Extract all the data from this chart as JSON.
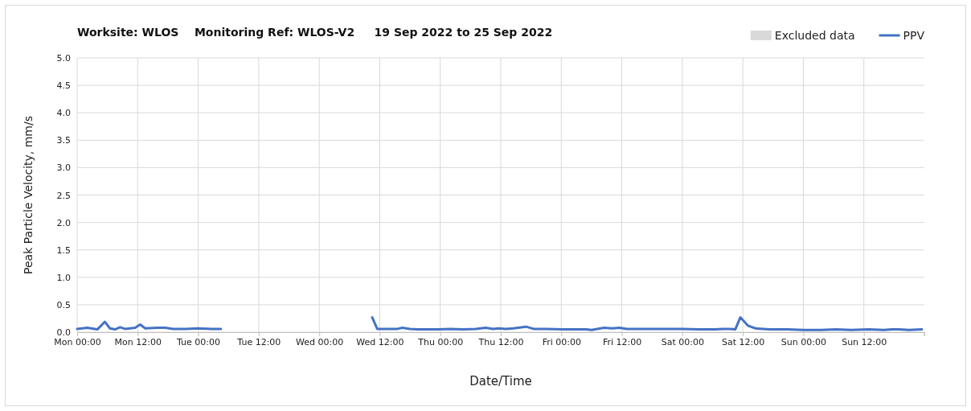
{
  "chart_data": {
    "type": "line",
    "title": "Worksite: WLOS    Monitoring Ref: WLOS-V2     19 Sep 2022 to 25 Sep 2022",
    "xlabel": "Date/Time",
    "ylabel": "Peak Particle Velocity, mm/s",
    "xlim": [
      "2022-09-19T00:00",
      "2022-09-26T00:00"
    ],
    "xticks": [
      {
        "value": "2022-09-19T00:00",
        "label": "Mon 00:00"
      },
      {
        "value": "2022-09-19T12:00",
        "label": "Mon 12:00"
      },
      {
        "value": "2022-09-20T00:00",
        "label": "Tue 00:00"
      },
      {
        "value": "2022-09-20T12:00",
        "label": "Tue 12:00"
      },
      {
        "value": "2022-09-21T00:00",
        "label": "Wed 00:00"
      },
      {
        "value": "2022-09-21T12:00",
        "label": "Wed 12:00"
      },
      {
        "value": "2022-09-22T00:00",
        "label": "Thu 00:00"
      },
      {
        "value": "2022-09-22T12:00",
        "label": "Thu 12:00"
      },
      {
        "value": "2022-09-23T00:00",
        "label": "Fri 00:00"
      },
      {
        "value": "2022-09-23T12:00",
        "label": "Fri 12:00"
      },
      {
        "value": "2022-09-24T00:00",
        "label": "Sat 00:00"
      },
      {
        "value": "2022-09-24T12:00",
        "label": "Sat 12:00"
      },
      {
        "value": "2022-09-25T00:00",
        "label": "Sun 00:00"
      },
      {
        "value": "2022-09-25T12:00",
        "label": "Sun 12:00"
      }
    ],
    "ylim": [
      0,
      5
    ],
    "yticks": [
      {
        "value": 0,
        "label": "0.0"
      },
      {
        "value": 0.5,
        "label": "0.5"
      },
      {
        "value": 1,
        "label": "1.0"
      },
      {
        "value": 1.5,
        "label": "1.5"
      },
      {
        "value": 2,
        "label": "2.0"
      },
      {
        "value": 2.5,
        "label": "2.5"
      },
      {
        "value": 3,
        "label": "3.0"
      },
      {
        "value": 3.5,
        "label": "3.5"
      },
      {
        "value": 4,
        "label": "4.0"
      },
      {
        "value": 4.5,
        "label": "4.5"
      },
      {
        "value": 5,
        "label": "5.0"
      }
    ],
    "grid": true,
    "legend": "top right",
    "marker": "none",
    "line_style": "solid",
    "series": [
      {
        "name": "Excluded data",
        "type": "area",
        "color": "#d9d9d9"
      },
      {
        "name": "PPV",
        "color": "#4472c4",
        "x": [
          "2022-09-19T00:00",
          "2022-09-19T02:00",
          "2022-09-19T04:00",
          "2022-09-19T05:30",
          "2022-09-19T06:30",
          "2022-09-19T07:30",
          "2022-09-19T08:30",
          "2022-09-19T09:30",
          "2022-09-19T11:30",
          "2022-09-19T12:30",
          "2022-09-19T13:30",
          "2022-09-19T16:00",
          "2022-09-19T17:30",
          "2022-09-19T19:00",
          "2022-09-19T21:30",
          "2022-09-20T00:00",
          "2022-09-20T02:30",
          "2022-09-20T04:30",
          "2022-09-20T19:00",
          "2022-09-21T10:30",
          "2022-09-21T11:30",
          "2022-09-21T15:30",
          "2022-09-21T16:30",
          "2022-09-21T18:00",
          "2022-09-21T19:30",
          "2022-09-21T23:30",
          "2022-09-22T02:00",
          "2022-09-22T04:30",
          "2022-09-22T07:00",
          "2022-09-22T09:00",
          "2022-09-22T10:30",
          "2022-09-22T11:30",
          "2022-09-22T13:00",
          "2022-09-22T14:30",
          "2022-09-22T17:00",
          "2022-09-22T18:30",
          "2022-09-22T21:00",
          "2022-09-23T00:30",
          "2022-09-23T05:00",
          "2022-09-23T06:00",
          "2022-09-23T08:30",
          "2022-09-23T10:00",
          "2022-09-23T11:30",
          "2022-09-23T13:00",
          "2022-09-23T16:00",
          "2022-09-23T21:00",
          "2022-09-24T00:00",
          "2022-09-24T03:30",
          "2022-09-24T06:30",
          "2022-09-24T08:00",
          "2022-09-24T09:30",
          "2022-09-24T10:30",
          "2022-09-24T11:30",
          "2022-09-24T13:00",
          "2022-09-24T14:30",
          "2022-09-24T16:00",
          "2022-09-24T17:30",
          "2022-09-24T21:00",
          "2022-09-25T00:00",
          "2022-09-25T03:30",
          "2022-09-25T06:30",
          "2022-09-25T09:30",
          "2022-09-25T13:00",
          "2022-09-25T16:00",
          "2022-09-25T17:30",
          "2022-09-25T19:00",
          "2022-09-25T21:00",
          "2022-09-25T23:30"
        ],
        "values": [
          0.06,
          0.08,
          0.05,
          0.19,
          0.07,
          0.05,
          0.09,
          0.06,
          0.08,
          0.14,
          0.07,
          0.08,
          0.08,
          0.06,
          0.06,
          0.07,
          0.06,
          0.06,
          null,
          0.27,
          0.06,
          0.06,
          0.08,
          0.06,
          0.05,
          0.05,
          0.06,
          0.05,
          0.06,
          0.08,
          0.06,
          0.07,
          0.06,
          0.07,
          0.1,
          0.06,
          0.06,
          0.05,
          0.05,
          0.04,
          0.08,
          0.07,
          0.08,
          0.06,
          0.06,
          0.06,
          0.06,
          0.05,
          0.05,
          0.06,
          0.06,
          0.05,
          0.27,
          0.12,
          0.07,
          0.06,
          0.05,
          0.05,
          0.04,
          0.04,
          0.05,
          0.04,
          0.05,
          0.04,
          0.05,
          0.05,
          0.04,
          0.05
        ]
      }
    ]
  }
}
